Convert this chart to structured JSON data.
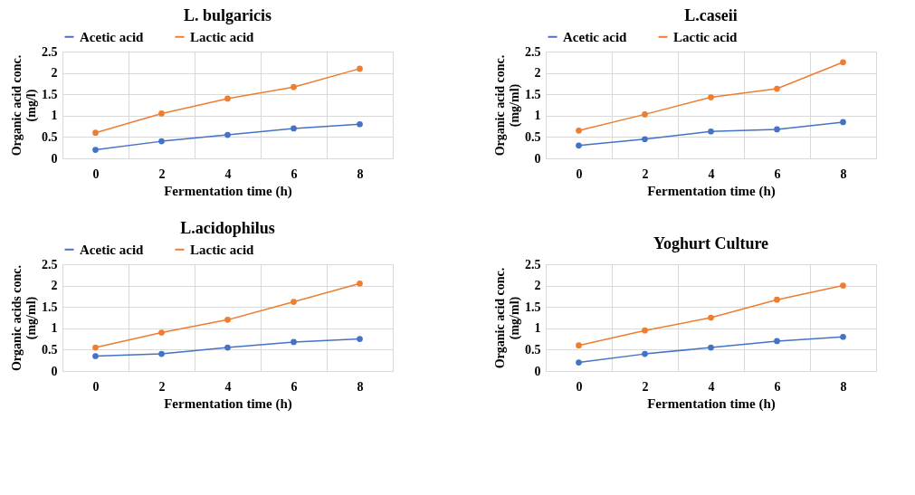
{
  "chart_data": [
    {
      "type": "line",
      "title": "L. bulgaricis",
      "xlabel": "Fermentation time (h)",
      "ylabel": "Organic acid conc.\n(mg/l)",
      "categories": [
        "0",
        "2",
        "4",
        "6",
        "8"
      ],
      "ylim": [
        0,
        2.5
      ],
      "yticks": [
        0,
        0.5,
        1,
        1.5,
        2,
        2.5
      ],
      "grid": true,
      "legend": "top",
      "marker": "circle",
      "series": [
        {
          "name": "Acetic acid",
          "color": "#4472c4",
          "values": [
            0.2,
            0.4,
            0.55,
            0.7,
            0.8
          ]
        },
        {
          "name": "Lactic acid",
          "color": "#ed7d31",
          "values": [
            0.6,
            1.05,
            1.4,
            1.67,
            2.1
          ]
        }
      ]
    },
    {
      "type": "line",
      "title": "L.caseii",
      "xlabel": "Fermentation time (h)",
      "ylabel": "Organic acid conc.\n(mg/ml)",
      "categories": [
        "0",
        "2",
        "4",
        "6",
        "8"
      ],
      "ylim": [
        0,
        2.5
      ],
      "yticks": [
        0,
        0.5,
        1,
        1.5,
        2,
        2.5
      ],
      "grid": true,
      "legend": "top",
      "marker": "circle",
      "series": [
        {
          "name": "Acetic acid",
          "color": "#4472c4",
          "values": [
            0.3,
            0.45,
            0.63,
            0.68,
            0.85
          ]
        },
        {
          "name": "Lactic acid",
          "color": "#ed7d31",
          "values": [
            0.65,
            1.03,
            1.43,
            1.63,
            2.25
          ]
        }
      ]
    },
    {
      "type": "line",
      "title": "L.acidophilus",
      "xlabel": "Fermentation time (h)",
      "ylabel": "Organic acids conc.\n(mg/ml)",
      "categories": [
        "0",
        "2",
        "4",
        "6",
        "8"
      ],
      "ylim": [
        0,
        2.5
      ],
      "yticks": [
        0,
        0.5,
        1,
        1.5,
        2,
        2.5
      ],
      "grid": true,
      "legend": "top",
      "marker": "circle",
      "series": [
        {
          "name": "Acetic acid",
          "color": "#4472c4",
          "values": [
            0.35,
            0.4,
            0.55,
            0.68,
            0.75
          ]
        },
        {
          "name": "Lactic acid",
          "color": "#ed7d31",
          "values": [
            0.55,
            0.9,
            1.2,
            1.62,
            2.05
          ]
        }
      ]
    },
    {
      "type": "line",
      "title": "Yoghurt Culture",
      "xlabel": "Fermentation time (h)",
      "ylabel": "Organic acid conc.\n(mg/ml)",
      "categories": [
        "0",
        "2",
        "4",
        "6",
        "8"
      ],
      "ylim": [
        0,
        2.5
      ],
      "yticks": [
        0,
        0.5,
        1,
        1.5,
        2,
        2.5
      ],
      "grid": true,
      "marker": "circle",
      "series": [
        {
          "color": "#4472c4",
          "values": [
            0.2,
            0.4,
            0.55,
            0.7,
            0.8
          ]
        },
        {
          "color": "#ed7d31",
          "values": [
            0.6,
            0.95,
            1.25,
            1.67,
            2.0
          ]
        }
      ]
    }
  ]
}
